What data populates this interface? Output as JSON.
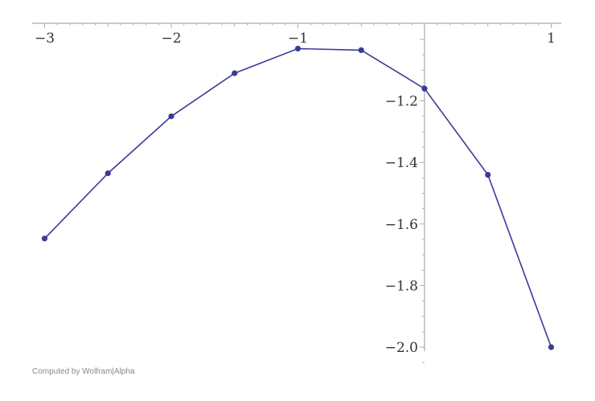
{
  "chart_data": {
    "type": "line",
    "title": "",
    "xlabel": "",
    "ylabel": "",
    "xlim": [
      -3.1,
      1.05
    ],
    "ylim": [
      -2.05,
      -0.95
    ],
    "x_ticks": [
      -3,
      -2,
      -1,
      1
    ],
    "x_tick_labels": [
      "−3",
      "−2",
      "−1",
      "1"
    ],
    "y_ticks": [
      -1.2,
      -1.4,
      -1.6,
      -1.8,
      -2.0
    ],
    "y_tick_labels": [
      "−1.2",
      "−1.4",
      "−1.6",
      "−1.8",
      "−2.0"
    ],
    "grid": false,
    "series": [
      {
        "x": [
          -3,
          -2.5,
          -2,
          -1.5,
          -1,
          -0.5,
          0,
          0.5,
          1
        ],
        "y": [
          -1.647,
          -1.435,
          -1.25,
          -1.11,
          -1.03,
          -1.035,
          -1.16,
          -1.44,
          -2.0
        ]
      }
    ],
    "colors": {
      "series": "#3b3b98",
      "axis": "#999999",
      "text": "#333333"
    }
  },
  "footer": {
    "credit": "Computed by Wolfram|Alpha"
  }
}
